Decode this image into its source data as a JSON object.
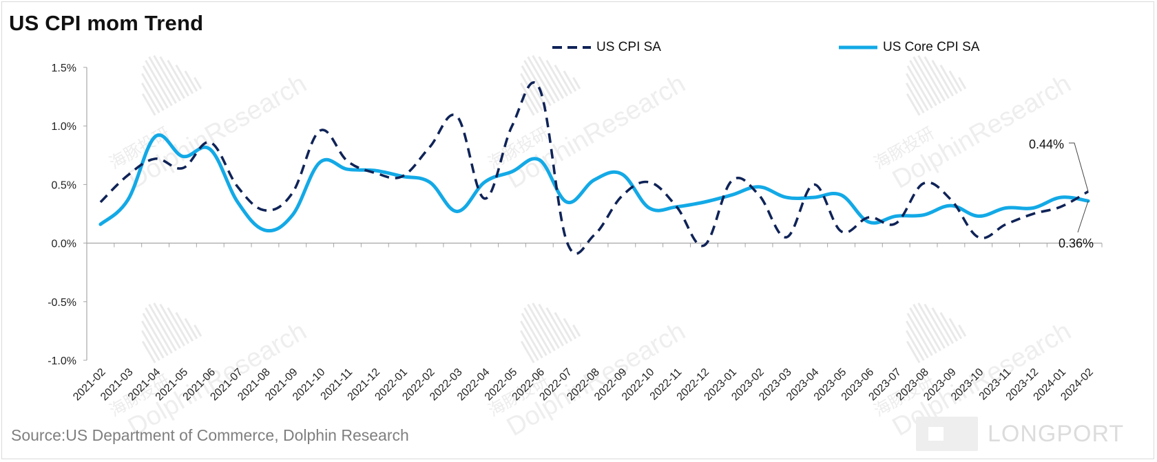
{
  "chart_data": {
    "type": "line",
    "title": "US CPI mom Trend",
    "source": "Source:US Department of Commerce, Dolphin Research",
    "x": [
      "2021-02",
      "2021-03",
      "2021-04",
      "2021-05",
      "2021-06",
      "2021-07",
      "2021-08",
      "2021-09",
      "2021-10",
      "2021-11",
      "2021-12",
      "2022-01",
      "2022-02",
      "2022-03",
      "2022-04",
      "2022-05",
      "2022-06",
      "2022-07",
      "2022-08",
      "2022-09",
      "2022-10",
      "2022-11",
      "2022-12",
      "2023-01",
      "2023-02",
      "2023-03",
      "2023-04",
      "2023-05",
      "2023-06",
      "2023-07",
      "2023-08",
      "2023-09",
      "2023-10",
      "2023-11",
      "2023-12",
      "2024-01",
      "2024-02"
    ],
    "series": [
      {
        "name": "US CPI SA",
        "color": "#0f2357",
        "style": "dashed",
        "values": [
          0.35,
          0.58,
          0.72,
          0.64,
          0.86,
          0.48,
          0.28,
          0.43,
          0.96,
          0.7,
          0.6,
          0.57,
          0.82,
          1.08,
          0.38,
          1.0,
          1.32,
          0.01,
          0.07,
          0.4,
          0.52,
          0.31,
          -0.02,
          0.53,
          0.41,
          0.05,
          0.5,
          0.1,
          0.22,
          0.17,
          0.51,
          0.37,
          0.05,
          0.16,
          0.25,
          0.31,
          0.44
        ]
      },
      {
        "name": "US Core CPI SA",
        "color": "#13a9e6",
        "style": "solid",
        "values": [
          0.16,
          0.37,
          0.91,
          0.74,
          0.8,
          0.35,
          0.11,
          0.24,
          0.69,
          0.63,
          0.62,
          0.57,
          0.52,
          0.27,
          0.52,
          0.61,
          0.71,
          0.35,
          0.54,
          0.59,
          0.3,
          0.31,
          0.35,
          0.41,
          0.48,
          0.39,
          0.39,
          0.41,
          0.18,
          0.23,
          0.24,
          0.32,
          0.23,
          0.3,
          0.3,
          0.39,
          0.36
        ]
      }
    ],
    "ylim": [
      -1.0,
      1.5
    ],
    "yticks": [
      1.5,
      1.0,
      0.5,
      0.0,
      -0.5,
      -1.0
    ],
    "ytick_labels": [
      "1.5%",
      "1.0%",
      "0.5%",
      "0.0%",
      "-0.5%",
      "-1.0%"
    ],
    "annotations": [
      {
        "text": "0.44%",
        "series": 0,
        "index": 36
      },
      {
        "text": "0.36%",
        "series": 1,
        "index": 36
      }
    ],
    "legend": "top",
    "grid": false
  },
  "watermark": {
    "cn": "海豚投研",
    "en": "DolphinResearch"
  },
  "brand_text": "LONGPORT"
}
